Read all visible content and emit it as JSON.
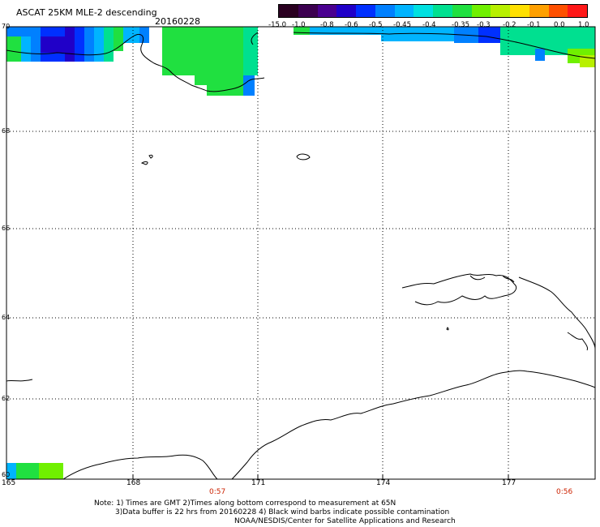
{
  "header": {
    "title": "ASCAT 25KM MLE-2 descending",
    "date": "20160228"
  },
  "colorbar": {
    "labels": [
      "-15.0",
      "-1.0",
      "-0.8",
      "-0.6",
      "-0.5",
      "-0.45",
      "-0.4",
      "-0.35",
      "-0.3",
      "-0.2",
      "-0.1",
      "0.0",
      "1.0"
    ],
    "colors": [
      "#2a0020",
      "#3c0050",
      "#4a0090",
      "#2000c8",
      "#0030ff",
      "#0080ff",
      "#00b4ff",
      "#00e0e0",
      "#00e090",
      "#20e040",
      "#70f000",
      "#b8f000",
      "#ffe000",
      "#ffa000",
      "#ff5000",
      "#ff1818"
    ]
  },
  "axes": {
    "lat_labels": [
      "70",
      "68",
      "66",
      "64",
      "62",
      "60"
    ],
    "lon_labels": [
      "165",
      "168",
      "171",
      "174",
      "177"
    ],
    "times": [
      "0:57",
      "0:56"
    ]
  },
  "footer": {
    "note1": "Note: 1) Times are GMT 2)Times along bottom correspond to measurement at 65N",
    "note2": "3)Data buffer is 22 hrs from 20160228 4) Black wind barbs indicate possible contamination",
    "credit": "NOAA/NESDIS/Center for Satellite Applications and Research"
  }
}
